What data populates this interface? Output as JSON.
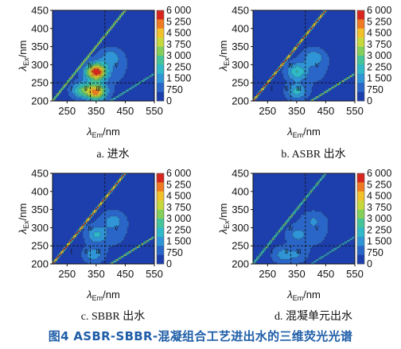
{
  "figure_caption": "图4  ASBR-SBBR-混凝组合工艺进出水的三维荧光光谱",
  "colorbar": {
    "ticks": [
      "6 000",
      "5 250",
      "4 500",
      "3 750",
      "3 000",
      "2 250",
      "1 500",
      "750",
      "0"
    ],
    "colors": [
      "#1d3fae",
      "#2a66c8",
      "#2f95d6",
      "#2fb9c9",
      "#45c49a",
      "#84cf5a",
      "#c7d83c",
      "#f2c12a",
      "#f07a22",
      "#d8261f"
    ]
  },
  "axes": {
    "xlabel": "λEm/nm",
    "ylabel": "λEx/nm"
  },
  "chart_data": [
    {
      "type": "heatmap",
      "subcaption": "a. 进水",
      "x_ticks": [
        250,
        350,
        450,
        550
      ],
      "y_ticks": [
        200,
        250,
        300,
        350,
        400,
        450
      ],
      "xlim": [
        200,
        550
      ],
      "ylim": [
        200,
        450
      ],
      "regions": [
        "Ⅰ",
        "Ⅱ",
        "Ⅲ",
        "Ⅳ",
        "Ⅴ"
      ],
      "peaks": [
        {
          "ex": 280,
          "em": 350,
          "intensity": 6000
        },
        {
          "ex": 225,
          "em": 350,
          "intensity": 5000
        },
        {
          "ex": 230,
          "em": 300,
          "intensity": 2500
        },
        {
          "ex": 320,
          "em": 400,
          "intensity": 1200
        }
      ],
      "scatter_intensity": 4000
    },
    {
      "type": "heatmap",
      "subcaption": "b. ASBR 出水",
      "x_ticks": [
        250,
        350,
        450,
        550
      ],
      "y_ticks": [
        200,
        250,
        300,
        350,
        400,
        450
      ],
      "xlim": [
        200,
        550
      ],
      "ylim": [
        200,
        450
      ],
      "regions": [
        "Ⅰ",
        "Ⅱ",
        "Ⅲ",
        "Ⅳ",
        "Ⅴ"
      ],
      "peaks": [
        {
          "ex": 280,
          "em": 350,
          "intensity": 2000
        },
        {
          "ex": 225,
          "em": 350,
          "intensity": 1800
        },
        {
          "ex": 320,
          "em": 410,
          "intensity": 1200
        }
      ],
      "scatter_intensity": 6000
    },
    {
      "type": "heatmap",
      "subcaption": "c. SBBR 出水",
      "x_ticks": [
        250,
        350,
        450,
        550
      ],
      "y_ticks": [
        200,
        250,
        300,
        350,
        400,
        450
      ],
      "xlim": [
        200,
        550
      ],
      "ylim": [
        200,
        450
      ],
      "regions": [
        "Ⅰ",
        "Ⅱ",
        "Ⅲ",
        "Ⅳ",
        "Ⅴ"
      ],
      "peaks": [
        {
          "ex": 280,
          "em": 350,
          "intensity": 1500
        },
        {
          "ex": 225,
          "em": 340,
          "intensity": 1400
        },
        {
          "ex": 320,
          "em": 410,
          "intensity": 1000
        }
      ],
      "scatter_intensity": 6000
    },
    {
      "type": "heatmap",
      "subcaption": "d. 混凝单元出水",
      "x_ticks": [
        250,
        350,
        450,
        550
      ],
      "y_ticks": [
        200,
        250,
        300,
        350,
        400,
        450
      ],
      "xlim": [
        200,
        550
      ],
      "ylim": [
        200,
        450
      ],
      "regions": [
        "Ⅰ",
        "Ⅱ",
        "Ⅲ",
        "Ⅳ",
        "Ⅴ"
      ],
      "peaks": [
        {
          "ex": 280,
          "em": 350,
          "intensity": 900
        },
        {
          "ex": 225,
          "em": 300,
          "intensity": 1200
        },
        {
          "ex": 225,
          "em": 350,
          "intensity": 900
        },
        {
          "ex": 320,
          "em": 410,
          "intensity": 700
        }
      ],
      "scatter_intensity": 3000
    }
  ]
}
